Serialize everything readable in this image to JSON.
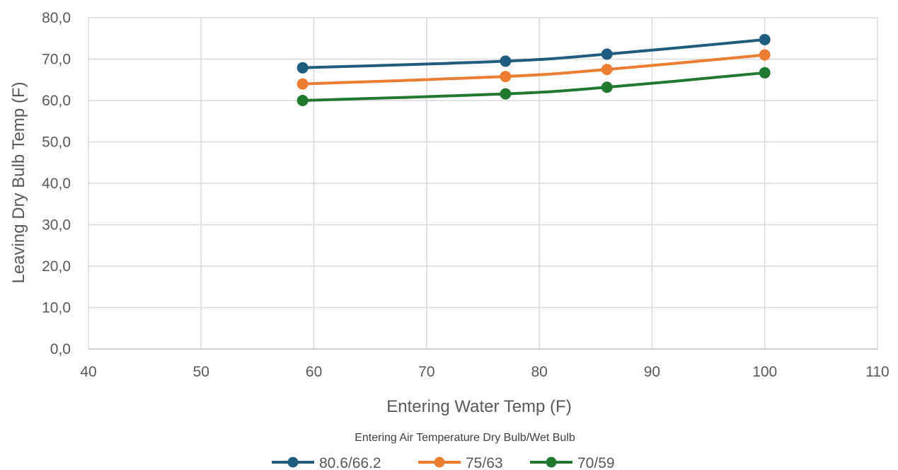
{
  "chart_data": {
    "type": "line",
    "title": "",
    "xlabel": "Entering Water Temp (F)",
    "ylabel": "Leaving Dry Bulb Temp (F)",
    "xlim": [
      40,
      110
    ],
    "ylim": [
      0,
      80
    ],
    "x_ticks": [
      "40",
      "50",
      "60",
      "70",
      "80",
      "90",
      "100",
      "110"
    ],
    "y_ticks": [
      "0,0",
      "10,0",
      "20,0",
      "30,0",
      "40,0",
      "50,0",
      "60,0",
      "70,0",
      "80,0"
    ],
    "grid": true,
    "legend_title": "Entering Air Temperature Dry Bulb/Wet Bulb",
    "legend_position": "bottom",
    "x": [
      59,
      77,
      86,
      100
    ],
    "series": [
      {
        "name": "80.6/66.2",
        "color": "#1f5d80",
        "values": [
          67.9,
          69.5,
          71.2,
          74.7
        ]
      },
      {
        "name": "75/63",
        "color": "#ed7d31",
        "values": [
          64.0,
          65.8,
          67.5,
          71.0
        ]
      },
      {
        "name": "70/59",
        "color": "#1f7a2e",
        "values": [
          60.0,
          61.6,
          63.2,
          66.7
        ]
      }
    ]
  }
}
